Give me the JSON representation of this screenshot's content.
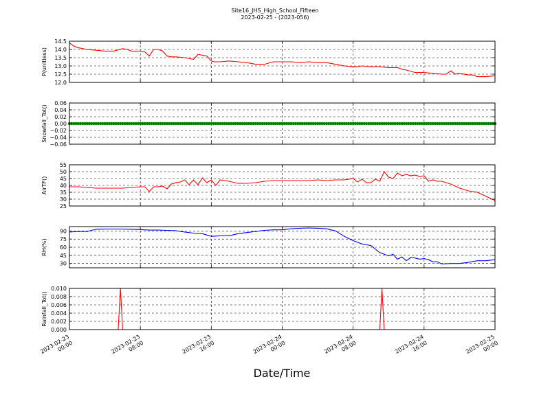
{
  "figure": {
    "title": "Site16_JHS_High_School_Fifteen",
    "subtitle": "2023-02-25 - (2023-056)",
    "xlabel": "Date/Time",
    "x_ticks": [
      {
        "x": 0,
        "label": [
          "2023-02-23",
          "00:00"
        ]
      },
      {
        "x": 8,
        "label": [
          "2023-02-23",
          "08:00"
        ]
      },
      {
        "x": 16,
        "label": [
          "2023-02-23",
          "16:00"
        ]
      },
      {
        "x": 24,
        "label": [
          "2023-02-24",
          "00:00"
        ]
      },
      {
        "x": 32,
        "label": [
          "2023-02-24",
          "08:00"
        ]
      },
      {
        "x": 40,
        "label": [
          "2023-02-24",
          "16:00"
        ]
      },
      {
        "x": 48,
        "label": [
          "2023-02-25",
          "00:00"
        ]
      }
    ],
    "colors": {
      "red": "#ff0000",
      "green": "#008000",
      "blue": "#0000ff",
      "axis": "#000000"
    }
  },
  "chart_data": [
    {
      "type": "line",
      "ylabel": "P(unitless)",
      "ylim": [
        12.0,
        14.5
      ],
      "yticks": [
        12.0,
        12.5,
        13.0,
        13.5,
        14.0,
        14.5
      ],
      "ytick_labels": [
        "12.0",
        "12.5",
        "13.0",
        "13.5",
        "14.0",
        "14.5"
      ],
      "xlim": [
        0,
        48
      ],
      "grid": true,
      "series": [
        {
          "color": "#ff0000",
          "x": [
            0,
            0.5,
            1,
            2,
            3,
            4,
            5,
            6,
            6.5,
            7,
            8,
            8.5,
            9,
            9.5,
            10,
            10.5,
            11,
            11.5,
            12,
            13,
            14,
            14.5,
            15,
            15.5,
            16,
            16.3,
            17,
            18,
            19,
            20,
            21,
            22,
            23,
            24,
            25,
            26,
            27,
            28,
            29,
            30,
            31,
            32,
            32.5,
            33,
            34,
            35,
            36,
            37,
            37.5,
            38,
            39,
            40,
            41,
            42,
            42.5,
            43,
            43.5,
            44,
            45,
            45.5,
            46,
            47,
            48
          ],
          "y": [
            14.4,
            14.2,
            14.1,
            14.0,
            13.95,
            13.9,
            13.9,
            14.05,
            14.0,
            13.9,
            13.9,
            13.85,
            13.6,
            14.0,
            14.0,
            13.9,
            13.6,
            13.55,
            13.55,
            13.5,
            13.4,
            13.7,
            13.65,
            13.6,
            13.3,
            13.25,
            13.25,
            13.3,
            13.25,
            13.2,
            13.1,
            13.1,
            13.25,
            13.25,
            13.25,
            13.2,
            13.25,
            13.2,
            13.2,
            13.1,
            13.0,
            12.95,
            12.95,
            13.0,
            12.95,
            12.95,
            12.9,
            12.9,
            12.8,
            12.75,
            12.6,
            12.6,
            12.55,
            12.5,
            12.5,
            12.7,
            12.5,
            12.55,
            12.45,
            12.45,
            12.35,
            12.35,
            12.4
          ]
        }
      ]
    },
    {
      "type": "scatter",
      "ylabel": "Snowfall_Tot()",
      "ylim": [
        -0.06,
        0.06
      ],
      "yticks": [
        -0.06,
        -0.04,
        -0.02,
        0.0,
        0.02,
        0.04,
        0.06
      ],
      "ytick_labels": [
        "−0.06",
        "−0.04",
        "−0.02",
        "0.00",
        "0.02",
        "0.04",
        "0.06"
      ],
      "xlim": [
        0,
        48
      ],
      "grid": true,
      "series": [
        {
          "color": "#008000",
          "constant_y": 0.0,
          "x_start": 0,
          "x_end": 48,
          "x_step": 0.25
        }
      ]
    },
    {
      "type": "line",
      "ylabel": "AirTF()",
      "ylim": [
        25,
        55
      ],
      "yticks": [
        25,
        30,
        35,
        40,
        45,
        50,
        55
      ],
      "ytick_labels": [
        "25",
        "30",
        "35",
        "40",
        "45",
        "50",
        "55"
      ],
      "xlim": [
        0,
        48
      ],
      "grid": true,
      "series": [
        {
          "color": "#ff0000",
          "x": [
            0,
            1,
            2,
            3,
            4,
            5,
            6,
            7,
            8,
            8.5,
            9,
            9.5,
            10,
            10.5,
            11,
            11.5,
            12,
            12.5,
            13,
            13.5,
            14,
            14.5,
            15,
            15.5,
            16,
            16.5,
            17,
            18,
            19,
            20,
            21,
            22,
            23,
            24,
            25,
            26,
            27,
            28,
            29,
            30,
            31,
            32,
            32.5,
            33,
            33.5,
            34,
            34.5,
            35,
            35.5,
            36,
            36.5,
            37,
            37.5,
            38,
            38.5,
            39,
            39.5,
            40,
            40.5,
            41,
            41.5,
            42,
            43,
            44,
            45,
            46,
            47,
            48
          ],
          "y": [
            39,
            39,
            38.5,
            38,
            38,
            38,
            38,
            38.5,
            39,
            39,
            35.5,
            39,
            39,
            39.5,
            37.5,
            41,
            42,
            42.5,
            44,
            40.5,
            44,
            40.5,
            45.5,
            42,
            44,
            40,
            44,
            43,
            41.5,
            41.5,
            42,
            43,
            43.5,
            43.5,
            43.5,
            43.5,
            43.5,
            44,
            43.5,
            44,
            44,
            45,
            42.5,
            44.5,
            42,
            42,
            44.5,
            43,
            50,
            46,
            45,
            49,
            47,
            48,
            47,
            47.5,
            46.5,
            47,
            43,
            44,
            43,
            43,
            41,
            38,
            36,
            35,
            32,
            29
          ]
        }
      ]
    },
    {
      "type": "line",
      "ylabel": "RH(%)",
      "ylim": [
        22,
        98
      ],
      "yticks": [
        30,
        45,
        60,
        75,
        90
      ],
      "ytick_labels": [
        "30",
        "45",
        "60",
        "75",
        "90"
      ],
      "xlim": [
        0,
        48
      ],
      "grid": true,
      "series": [
        {
          "color": "#0000ff",
          "x": [
            0,
            1,
            2,
            3,
            4,
            5,
            6,
            7,
            8,
            9,
            10,
            11,
            12,
            13,
            14,
            15,
            16,
            17,
            18,
            19,
            20,
            21,
            22,
            23,
            24,
            25,
            26,
            27,
            28,
            29,
            30,
            31,
            32,
            33,
            34,
            35,
            36,
            36.5,
            37,
            37.5,
            38,
            38.5,
            39,
            39.5,
            40,
            40.5,
            41,
            41.5,
            42,
            43,
            44,
            45,
            46,
            47,
            48
          ],
          "y": [
            88,
            89,
            89,
            93,
            93.5,
            93.5,
            93.5,
            93,
            92.5,
            91.5,
            91.5,
            91,
            90.5,
            88,
            86,
            85,
            80,
            81,
            81,
            85,
            87,
            89,
            91,
            92,
            92,
            94,
            95,
            95.5,
            95,
            94,
            90,
            80,
            72,
            66,
            63,
            50,
            44,
            47,
            38,
            42,
            35,
            41,
            40,
            38,
            39,
            37,
            33,
            33,
            29,
            30,
            30,
            32,
            35,
            35,
            37
          ]
        }
      ]
    },
    {
      "type": "line",
      "ylabel": "Rainfall_Tot()",
      "ylim": [
        0.0,
        0.01
      ],
      "yticks": [
        0.0,
        0.002,
        0.004,
        0.006,
        0.008,
        0.01
      ],
      "ytick_labels": [
        "0.000",
        "0.002",
        "0.004",
        "0.006",
        "0.008",
        "0.010"
      ],
      "xlim": [
        0,
        48
      ],
      "grid": true,
      "series": [
        {
          "color": "#ff0000",
          "x": [
            0,
            5.5,
            5.75,
            6.0,
            35.0,
            35.25,
            35.5,
            48
          ],
          "y": [
            0,
            0,
            0.01,
            0,
            0,
            0.01,
            0,
            0
          ]
        }
      ]
    }
  ]
}
